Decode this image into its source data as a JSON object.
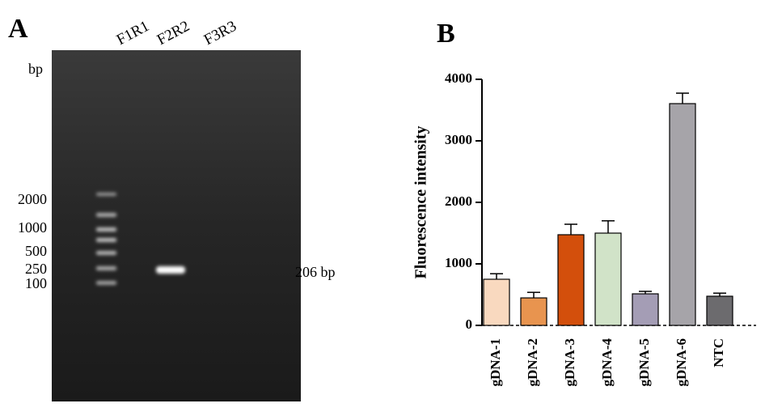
{
  "gel": {
    "panel_label": "A",
    "lanes": [
      "F1R1",
      "F2R2",
      "F3R3"
    ],
    "unit": "bp",
    "ladder_labels": [
      "2000",
      "1000",
      "500",
      "250",
      "100"
    ],
    "band_label": "206 bp"
  },
  "chart_data": {
    "type": "bar",
    "panel_label": "B",
    "y_label": "Fluorescence intensity",
    "categories": [
      "gDNA-1",
      "gDNA-2",
      "gDNA-3",
      "gDNA-4",
      "gDNA-5",
      "gDNA-6",
      "NTC"
    ],
    "values": [
      750,
      447,
      1474,
      1500,
      513,
      3605,
      474
    ],
    "errors": [
      90,
      90,
      170,
      200,
      40,
      170,
      50
    ],
    "colors": [
      "#f9d9bf",
      "#e8944f",
      "#d34f0c",
      "#d1e3c8",
      "#a49db5",
      "#a6a4a9",
      "#6c6b6e"
    ],
    "ylim": [
      0,
      4000
    ],
    "yticks": [
      0,
      1000,
      2000,
      3000,
      4000
    ]
  }
}
